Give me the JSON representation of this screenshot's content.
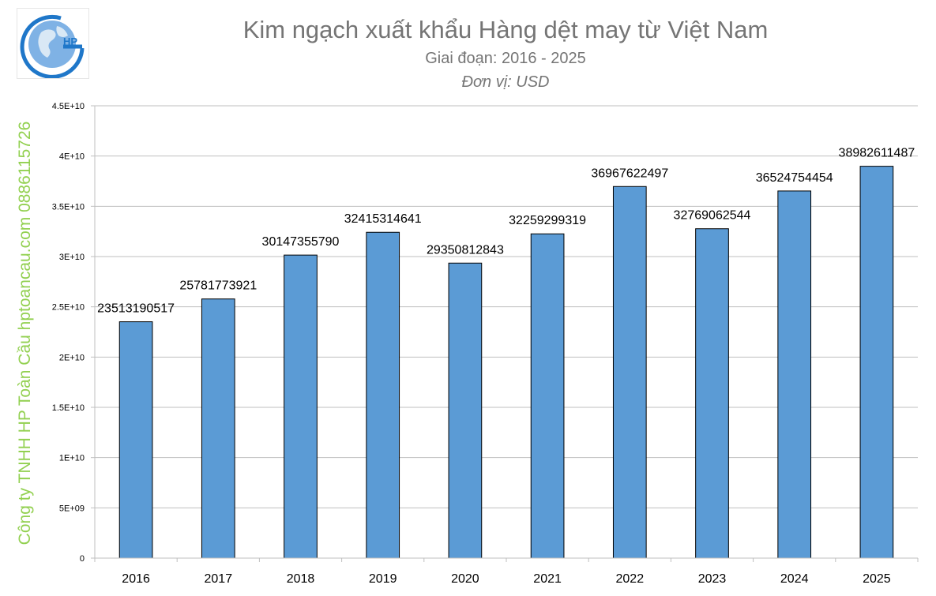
{
  "header": {
    "title": "Kim ngạch xuất khẩu Hàng dệt may từ Việt Nam",
    "subtitle": "Giai đoạn: 2016 - 2025",
    "unit": "Đơn vị: USD"
  },
  "logo": {
    "text": "HP",
    "icon": "globe-logo-icon"
  },
  "watermark": "Công ty TNHH HP Toàn Cầu hptoancau.com 0886115726",
  "colors": {
    "bar": "#5b9bd5",
    "bar_outline": "#000000",
    "grid": "#bfbfbf",
    "text": "#000000",
    "title": "#757575",
    "watermark": "#92d050"
  },
  "chart_data": {
    "type": "bar",
    "categories": [
      "2016",
      "2017",
      "2018",
      "2019",
      "2020",
      "2021",
      "2022",
      "2023",
      "2024",
      "2025"
    ],
    "values": [
      23513190517,
      25781773921,
      30147355790,
      32415314641,
      29350812843,
      32259299319,
      36967622497,
      32769062544,
      36524754454,
      38982611487
    ],
    "data_labels": [
      "23513190517",
      "25781773921",
      "30147355790",
      "32415314641",
      "29350812843",
      "32259299319",
      "36967622497",
      "32769062544",
      "36524754454",
      "38982611487"
    ],
    "ylim": [
      0,
      45000000000
    ],
    "yticks": [
      0,
      5000000000,
      10000000000,
      15000000000,
      20000000000,
      25000000000,
      30000000000,
      35000000000,
      40000000000,
      45000000000
    ],
    "ytick_labels": [
      "0",
      "5E+09",
      "1E+10",
      "1.5E+10",
      "2E+10",
      "2.5E+10",
      "3E+10",
      "3.5E+10",
      "4E+10",
      "4.5E+10"
    ],
    "grid": true,
    "legend": false
  }
}
